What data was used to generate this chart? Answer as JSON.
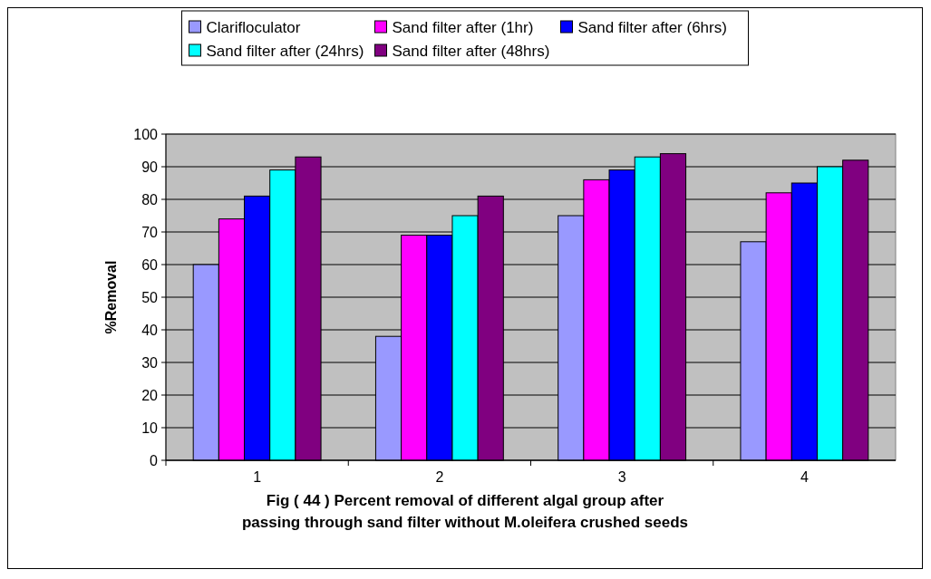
{
  "chart_data": {
    "type": "bar",
    "title": "Fig ( 44 ) Percent removal of different algal group after passing through sand filter without M.oleifera crushed seeds",
    "ylabel": "%Removal",
    "categories": [
      "1",
      "2",
      "3",
      "4"
    ],
    "series": [
      {
        "name": "Clarifloculator",
        "color": "#9999ff",
        "values": [
          60,
          38,
          75,
          67
        ]
      },
      {
        "name": "Sand filter after (1hr)",
        "color": "#ff00ff",
        "values": [
          74,
          69,
          86,
          82
        ]
      },
      {
        "name": "Sand filter after (6hrs)",
        "color": "#0000ff",
        "values": [
          81,
          69,
          89,
          85
        ]
      },
      {
        "name": "Sand filter after (24hrs)",
        "color": "#00ffff",
        "values": [
          89,
          75,
          93,
          90
        ]
      },
      {
        "name": "Sand filter after (48hrs)",
        "color": "#800080",
        "values": [
          93,
          81,
          94,
          92
        ]
      }
    ],
    "ylim": [
      0,
      100
    ],
    "yticks": [
      0,
      10,
      20,
      30,
      40,
      50,
      60,
      70,
      80,
      90,
      100
    ],
    "grid": "y",
    "legend": "top"
  }
}
